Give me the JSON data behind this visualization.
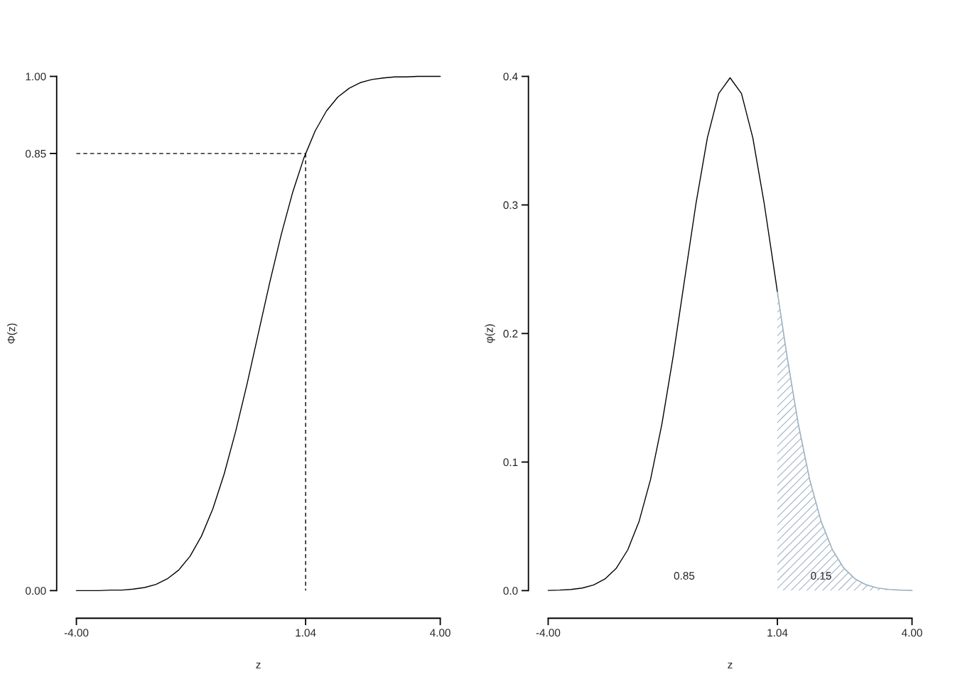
{
  "chart_data": [
    {
      "type": "line",
      "xlabel": "z",
      "ylabel": "Φ(z)",
      "xlim": [
        -4,
        4
      ],
      "ylim": [
        0,
        1
      ],
      "xticks": [
        {
          "value": -4,
          "label": "-4.00"
        },
        {
          "value": 1.04,
          "label": "1.04"
        },
        {
          "value": 4,
          "label": "4.00"
        }
      ],
      "yticks": [
        {
          "value": 0,
          "label": "0.00"
        },
        {
          "value": 0.85,
          "label": "0.85"
        },
        {
          "value": 1,
          "label": "1.00"
        }
      ],
      "grid": false,
      "legend": false,
      "series": [
        {
          "type": "line",
          "color": "#000000",
          "line_style": "solid",
          "x": [
            -4,
            -3.75,
            -3.5,
            -3.25,
            -3,
            -2.75,
            -2.5,
            -2.25,
            -2,
            -1.75,
            -1.5,
            -1.25,
            -1,
            -0.75,
            -0.5,
            -0.25,
            0,
            0.25,
            0.5,
            0.75,
            1,
            1.25,
            1.5,
            1.75,
            2,
            2.25,
            2.5,
            2.75,
            3,
            3.25,
            3.5,
            3.75,
            4
          ],
          "values": [
            0.0,
            0.0,
            0.0,
            0.001,
            0.001,
            0.003,
            0.006,
            0.012,
            0.023,
            0.04,
            0.067,
            0.106,
            0.159,
            0.227,
            0.309,
            0.401,
            0.5,
            0.599,
            0.691,
            0.773,
            0.841,
            0.894,
            0.933,
            0.96,
            0.977,
            0.988,
            0.994,
            0.997,
            0.999,
            0.999,
            1.0,
            1.0,
            1.0
          ]
        },
        {
          "type": "line",
          "color": "#000000",
          "line_style": "dashed",
          "x": [
            -4,
            1.04
          ],
          "values": [
            0.85,
            0.85
          ]
        },
        {
          "type": "line",
          "color": "#000000",
          "line_style": "dashed",
          "x": [
            1.04,
            1.04
          ],
          "values": [
            0.85,
            0
          ]
        }
      ]
    },
    {
      "type": "line",
      "xlabel": "z",
      "ylabel": "φ(z)",
      "xlim": [
        -4,
        4
      ],
      "ylim": [
        0,
        0.4
      ],
      "xticks": [
        {
          "value": -4,
          "label": "-4.00"
        },
        {
          "value": 1.04,
          "label": "1.04"
        },
        {
          "value": 4,
          "label": "4.00"
        }
      ],
      "yticks": [
        {
          "value": 0,
          "label": "0.0"
        },
        {
          "value": 0.1,
          "label": "0.1"
        },
        {
          "value": 0.2,
          "label": "0.2"
        },
        {
          "value": 0.3,
          "label": "0.3"
        },
        {
          "value": 0.4,
          "label": "0.4"
        }
      ],
      "grid": false,
      "legend": false,
      "annotations": [
        "0.85",
        "0.15"
      ],
      "series": [
        {
          "type": "line",
          "color": "#000000",
          "line_style": "solid",
          "x": [
            -4,
            -3.75,
            -3.5,
            -3.25,
            -3,
            -2.75,
            -2.5,
            -2.25,
            -2,
            -1.75,
            -1.5,
            -1.25,
            -1,
            -0.75,
            -0.5,
            -0.25,
            0,
            0.25,
            0.5,
            0.75,
            1,
            1.04
          ],
          "values": [
            0.0001,
            0.0004,
            0.0009,
            0.002,
            0.0044,
            0.0091,
            0.0175,
            0.0317,
            0.054,
            0.0863,
            0.1295,
            0.1826,
            0.242,
            0.3011,
            0.3521,
            0.3867,
            0.3989,
            0.3867,
            0.3521,
            0.3011,
            0.242,
            0.2323
          ]
        },
        {
          "type": "area",
          "color": "#9fb3c3",
          "x": [
            1.04,
            1.25,
            1.5,
            1.75,
            2,
            2.25,
            2.5,
            2.75,
            3,
            3.25,
            3.5,
            3.75,
            4
          ],
          "values": [
            0.2323,
            0.1826,
            0.1295,
            0.0863,
            0.054,
            0.0317,
            0.0175,
            0.0091,
            0.0044,
            0.002,
            0.0009,
            0.0004,
            0.0001
          ]
        }
      ]
    }
  ]
}
